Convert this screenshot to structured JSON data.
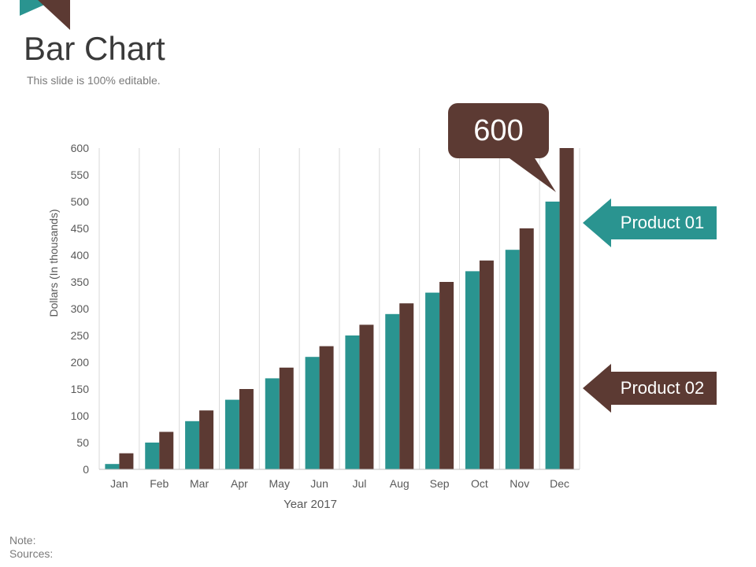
{
  "slide": {
    "title": "Bar Chart",
    "subtitle": "This slide is 100% editable.",
    "note_label": "Note:",
    "sources_label": "Sources:"
  },
  "colors": {
    "product01": "#2a9490",
    "product02": "#5c3a33",
    "grid": "#d9d9d9",
    "axis_text": "#595959"
  },
  "callout": {
    "value": "600"
  },
  "legend": {
    "product01": "Product 01",
    "product02": "Product 02"
  },
  "chart_data": {
    "type": "bar",
    "title": "",
    "xlabel": "Year 2017",
    "ylabel": "Dollars (In thousands)",
    "categories": [
      "Jan",
      "Feb",
      "Mar",
      "Apr",
      "May",
      "Jun",
      "Jul",
      "Aug",
      "Sep",
      "Oct",
      "Nov",
      "Dec"
    ],
    "series": [
      {
        "name": "Product 01",
        "values": [
          10,
          50,
          90,
          130,
          170,
          210,
          250,
          290,
          330,
          370,
          410,
          500
        ]
      },
      {
        "name": "Product 02",
        "values": [
          30,
          70,
          110,
          150,
          190,
          230,
          270,
          310,
          350,
          390,
          450,
          600
        ]
      }
    ],
    "ylim": [
      0,
      600
    ],
    "yticks": [
      0,
      50,
      100,
      150,
      200,
      250,
      300,
      350,
      400,
      450,
      500,
      550,
      600
    ],
    "grid": "vertical-category-lines",
    "legend_placement": "right"
  }
}
